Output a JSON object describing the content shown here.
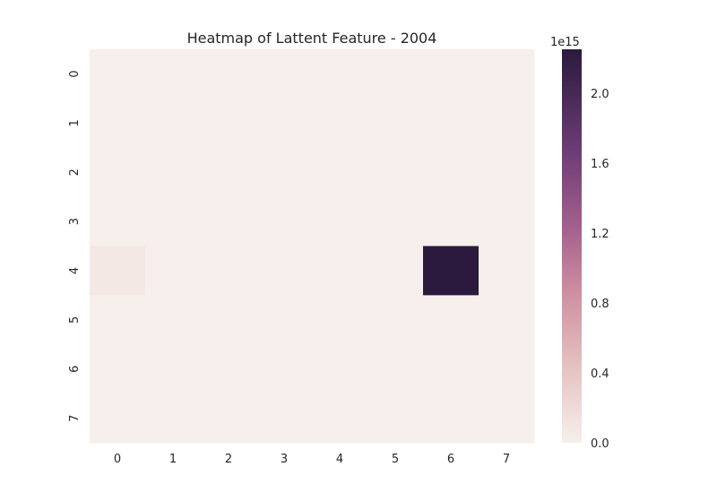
{
  "chart_data": {
    "type": "heatmap",
    "title": "Heatmap of Lattent Feature - 2004",
    "xlabel": "",
    "ylabel": "",
    "x_categories": [
      "0",
      "1",
      "2",
      "3",
      "4",
      "5",
      "6",
      "7"
    ],
    "y_categories": [
      "0",
      "1",
      "2",
      "3",
      "4",
      "5",
      "6",
      "7"
    ],
    "values": [
      [
        0,
        0,
        0,
        0,
        0,
        0,
        0,
        0
      ],
      [
        0,
        0,
        0,
        0,
        0,
        0,
        0,
        0
      ],
      [
        0,
        0,
        0,
        0,
        0,
        0,
        0,
        0
      ],
      [
        0,
        0,
        0,
        0,
        0,
        0,
        0,
        0
      ],
      [
        30000000000000,
        0,
        0,
        0,
        0,
        0,
        2250000000000000,
        0
      ],
      [
        0,
        0,
        0,
        0,
        0,
        0,
        0,
        0
      ],
      [
        0,
        0,
        0,
        0,
        0,
        0,
        0,
        0
      ],
      [
        0,
        0,
        0,
        0,
        0,
        0,
        0,
        0
      ]
    ],
    "colorbar": {
      "min": 0,
      "max": 2250000000000000,
      "ticks": [
        0,
        400000000000000,
        800000000000000,
        1200000000000000,
        1600000000000000,
        2000000000000000
      ],
      "tick_labels": [
        "0.0",
        "0.4",
        "0.8",
        "1.2",
        "1.6",
        "2.0"
      ],
      "exponent_label": "1e15",
      "colormap_low": "#f7efec",
      "colormap_mid": "#a35f8d",
      "colormap_high": "#2b1a3d"
    },
    "grid": false,
    "legend": "none"
  }
}
